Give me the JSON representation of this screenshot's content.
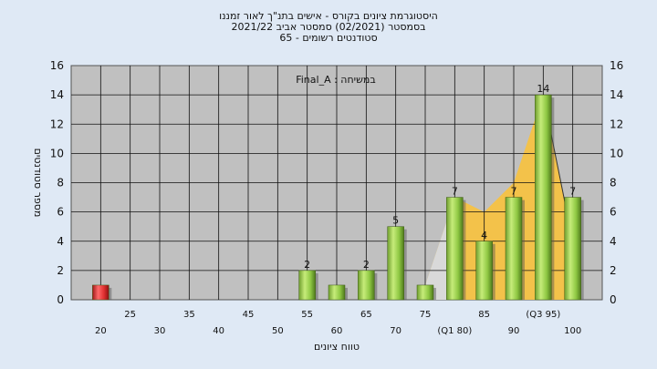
{
  "header": {
    "line1": "היסטוגרמת ציונים בקורס - אישים בתנ\"ך לאור זמננו",
    "line2": "בסמסטר  (02/2021)  סמסטר אביב 2021/22",
    "line3": "סטודנטים רשומים - 65"
  },
  "chart_data": {
    "type": "bar",
    "xlabel": "טווח ציונים",
    "ylabel": "מספר סטודנטים",
    "ylim": [
      0,
      16
    ],
    "yticks": [
      0,
      2,
      4,
      6,
      8,
      10,
      12,
      14,
      16
    ],
    "xlim": [
      15,
      105
    ],
    "xtick_upper": [
      "25",
      "35",
      "45",
      "55",
      "65",
      "75",
      "85",
      "(Q3 95)"
    ],
    "xtick_upper_pos": [
      25,
      35,
      45,
      55,
      65,
      75,
      85,
      95
    ],
    "xtick_lower": [
      "20",
      "30",
      "40",
      "50",
      "60",
      "70",
      "(Q1 80)",
      "90",
      "100"
    ],
    "xtick_lower_pos": [
      20,
      30,
      40,
      50,
      60,
      70,
      80,
      90,
      100
    ],
    "annotation": "Final_A : במשיחה",
    "grid": true,
    "bars": [
      {
        "x": 20,
        "value": 1,
        "label": "",
        "color": "#e03030"
      },
      {
        "x": 55,
        "value": 2,
        "label": "2",
        "color": "#8fc843"
      },
      {
        "x": 60,
        "value": 1,
        "label": "",
        "color": "#8fc843"
      },
      {
        "x": 65,
        "value": 2,
        "label": "2",
        "color": "#8fc843"
      },
      {
        "x": 70,
        "value": 5,
        "label": "5",
        "color": "#8fc843"
      },
      {
        "x": 75,
        "value": 1,
        "label": "",
        "color": "#8fc843"
      },
      {
        "x": 80,
        "value": 7,
        "label": "7",
        "color": "#8fc843"
      },
      {
        "x": 85,
        "value": 4,
        "label": "4",
        "color": "#8fc843"
      },
      {
        "x": 90,
        "value": 7,
        "label": "7",
        "color": "#8fc843"
      },
      {
        "x": 95,
        "value": 14,
        "label": "14",
        "color": "#8fc843"
      },
      {
        "x": 100,
        "value": 7,
        "label": "7",
        "color": "#8fc843"
      }
    ],
    "area_curve": [
      [
        75,
        1
      ],
      [
        80,
        7
      ],
      [
        85,
        6
      ],
      [
        90,
        8
      ],
      [
        95,
        14
      ],
      [
        100,
        4
      ]
    ],
    "colors": {
      "plot_bg": "#c0c0c0",
      "page_bg": "#dfe9f5",
      "area_fill": "#f6c243",
      "area_gray": "#d9d9d9"
    }
  }
}
